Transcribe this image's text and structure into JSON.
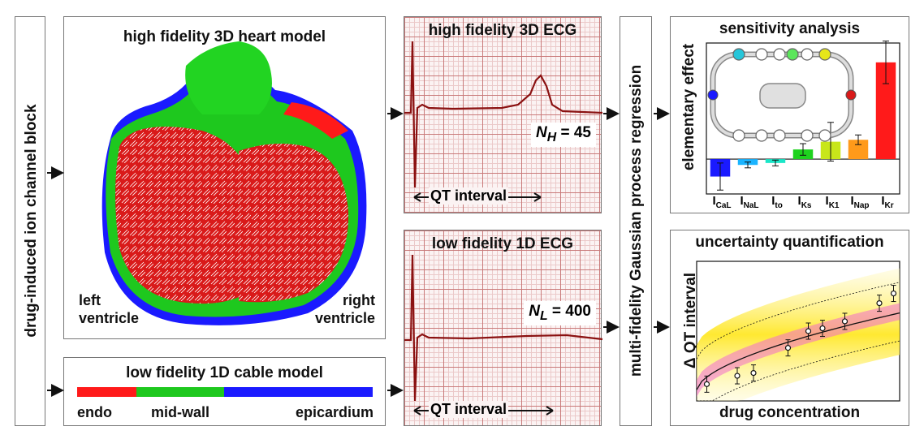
{
  "left_label": "drug-induced ion channel block",
  "heart": {
    "title": "high fidelity 3D heart model",
    "left_ventricle": [
      "left",
      "ventricle"
    ],
    "right_ventricle": [
      "right",
      "ventricle"
    ]
  },
  "cable": {
    "title": "low fidelity 1D cable model",
    "segments": [
      {
        "label": "endo",
        "color": "#ff1a1a"
      },
      {
        "label": "mid-wall",
        "color": "#1ec81e"
      },
      {
        "label": "epicardium",
        "color": "#1a1aff"
      }
    ]
  },
  "ecg_high": {
    "title": "high fidelity 3D ECG",
    "n_label": "N",
    "n_sub": "H",
    "n_value": "= 45",
    "qt_label": "QT interval"
  },
  "ecg_low": {
    "title": "low fidelity 1D ECG",
    "n_label": "N",
    "n_sub": "L",
    "n_value": "= 400",
    "qt_label": "QT interval"
  },
  "mfgp_label": "multi-fidelity Gaussian process regression",
  "sensitivity": {
    "title": "sensitivity analysis",
    "ylabel": "elementary effect",
    "chart_data": {
      "type": "bar",
      "categories": [
        "CaL",
        "NaL",
        "to",
        "Ks",
        "K1",
        "Nap",
        "Kr"
      ],
      "values": [
        -0.9,
        -0.3,
        -0.2,
        0.5,
        0.9,
        1.0,
        5.0
      ],
      "errors": [
        0.7,
        0.15,
        0.15,
        0.3,
        1.0,
        0.25,
        1.1
      ],
      "colors": [
        "#1a1aff",
        "#1ab4ff",
        "#1ae6c8",
        "#1ed21e",
        "#c8e61a",
        "#ff9a1a",
        "#ff1a1a"
      ]
    }
  },
  "uq": {
    "title": "uncertainty quantification",
    "ylabel": "Δ QT interval",
    "xlabel": "drug concentration",
    "chart_data": {
      "type": "scatter",
      "x": [
        0.05,
        0.2,
        0.28,
        0.45,
        0.55,
        0.62,
        0.73,
        0.9,
        0.97
      ],
      "y": [
        0.12,
        0.18,
        0.2,
        0.38,
        0.5,
        0.52,
        0.57,
        0.7,
        0.77
      ]
    }
  },
  "colors": {
    "ecg_line": "#8b1111",
    "arrow": "#111111"
  }
}
